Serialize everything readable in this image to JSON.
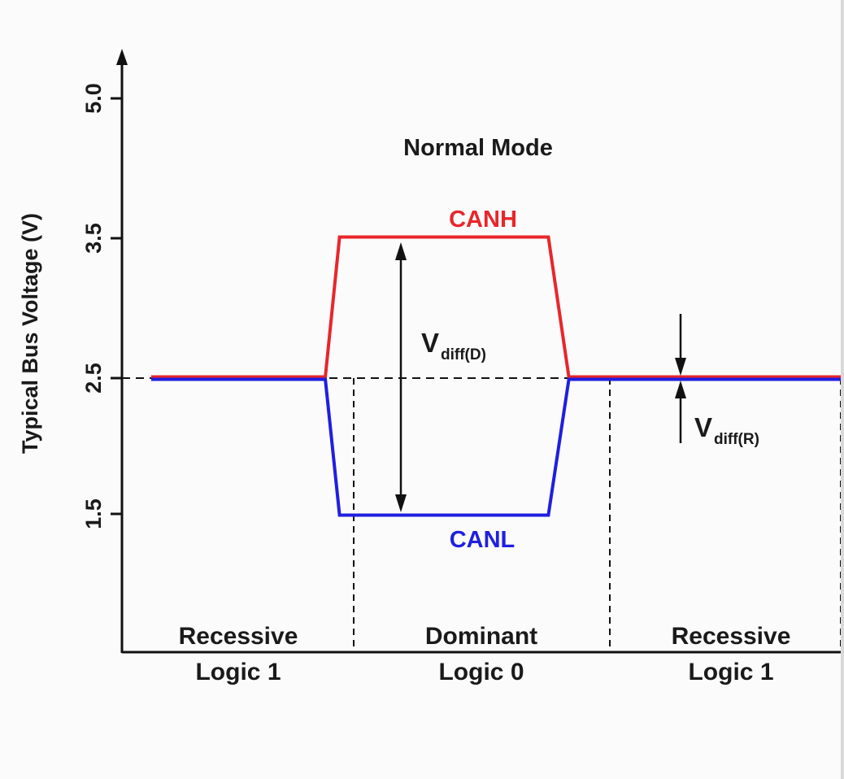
{
  "chart_data": {
    "type": "line",
    "title": "Normal Mode",
    "ylabel": "Typical Bus Voltage (V)",
    "xlabel": "",
    "yticks": [
      "5.0",
      "3.5",
      "2.5",
      "1.5"
    ],
    "yticks_values": [
      5.0,
      3.5,
      2.5,
      1.5
    ],
    "ylim": [
      0,
      5.0
    ],
    "reference_level": 2.5,
    "segments": [
      {
        "label": "Recessive",
        "logic": "Logic 1"
      },
      {
        "label": "Dominant",
        "logic": "Logic 0"
      },
      {
        "label": "Recessive",
        "logic": "Logic 1"
      }
    ],
    "series": [
      {
        "name": "CANH",
        "color": "#e8262b",
        "x": [
          0,
          0.86,
          0.93,
          1.76,
          1.84,
          3.0
        ],
        "y": [
          2.5,
          2.5,
          3.5,
          3.5,
          2.5,
          2.5
        ]
      },
      {
        "name": "CANL",
        "color": "#1f1fe0",
        "x": [
          0,
          0.86,
          0.93,
          1.76,
          1.84,
          3.0
        ],
        "y": [
          2.5,
          2.5,
          1.5,
          1.5,
          2.5,
          2.5
        ]
      }
    ],
    "annotations": {
      "vdiff_d": {
        "main": "V",
        "sub": "diff(D)"
      },
      "vdiff_r": {
        "main": "V",
        "sub": "diff(R)"
      }
    },
    "grid": false,
    "legend": "none"
  }
}
